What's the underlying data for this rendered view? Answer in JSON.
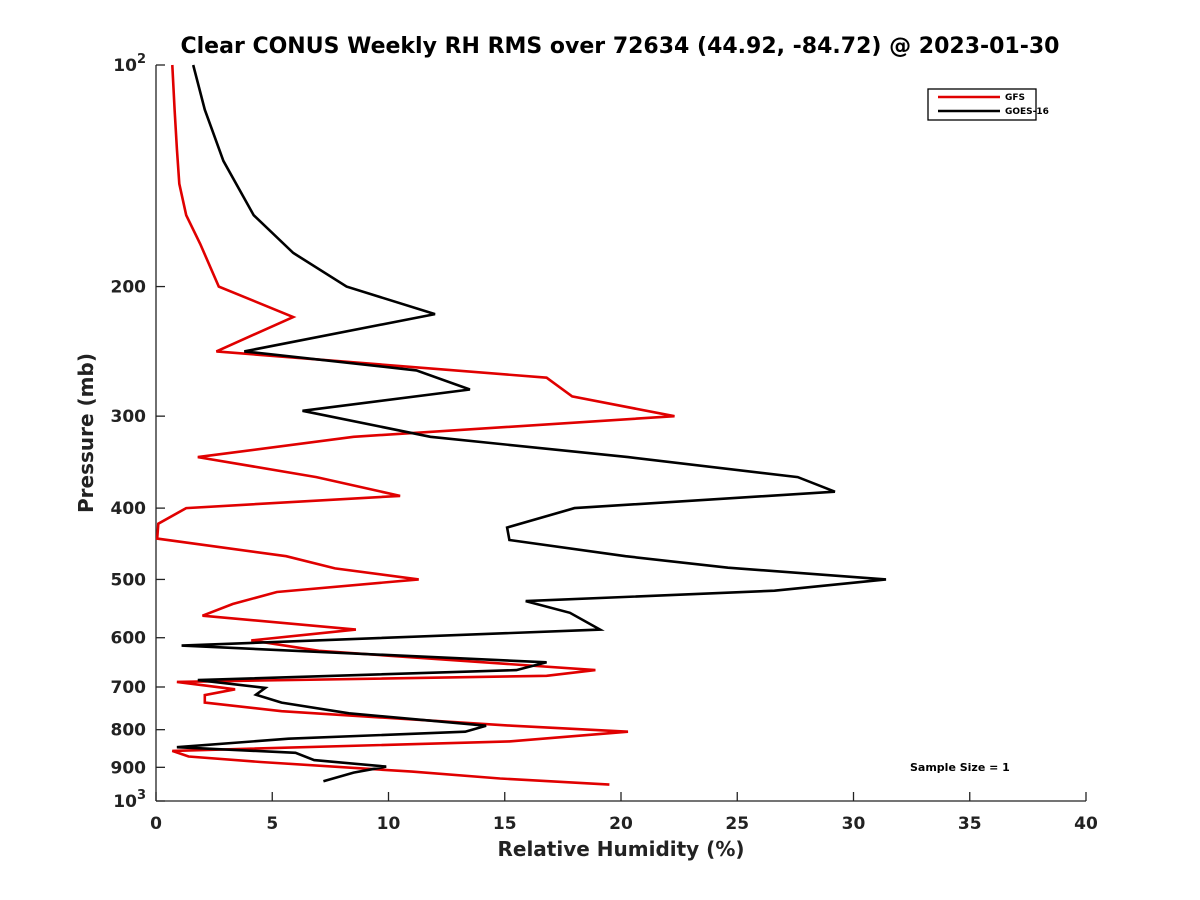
{
  "chart_data": {
    "type": "line",
    "title": "Clear CONUS Weekly RH RMS over 72634 (44.92, -84.72) @ 2023-01-30",
    "xlabel": "Relative Humidity (%)",
    "ylabel": "Pressure (mb)",
    "xlim": [
      0,
      40
    ],
    "ylim": [
      100,
      1000
    ],
    "yscale": "log",
    "yreversed": true,
    "grid": false,
    "legend_position": "top-right",
    "x_ticks": [
      "0",
      "5",
      "10",
      "15",
      "20",
      "25",
      "30",
      "35",
      "40"
    ],
    "x_tick_values": [
      0,
      5,
      10,
      15,
      20,
      25,
      30,
      35,
      40
    ],
    "y_ticks": [
      {
        "value": 100,
        "base": "10",
        "exp": "2",
        "label": "10^2"
      },
      {
        "value": 200,
        "label": "200"
      },
      {
        "value": 300,
        "label": "300"
      },
      {
        "value": 400,
        "label": "400"
      },
      {
        "value": 500,
        "label": "500"
      },
      {
        "value": 600,
        "label": "600"
      },
      {
        "value": 700,
        "label": "700"
      },
      {
        "value": 800,
        "label": "800"
      },
      {
        "value": 900,
        "label": "900"
      },
      {
        "value": 1000,
        "base": "10",
        "exp": "3",
        "label": "10^3"
      }
    ],
    "annotation": "Sample Size = 1",
    "series": [
      {
        "name": "GFS",
        "color": "#e00000",
        "points": [
          [
            0.7,
            100
          ],
          [
            0.8,
            115
          ],
          [
            0.9,
            130
          ],
          [
            1.0,
            145
          ],
          [
            1.3,
            160
          ],
          [
            1.9,
            175
          ],
          [
            2.7,
            200
          ],
          [
            5.9,
            220
          ],
          [
            2.6,
            245
          ],
          [
            16.8,
            266
          ],
          [
            17.9,
            282
          ],
          [
            22.3,
            300
          ],
          [
            8.5,
            320
          ],
          [
            1.8,
            341
          ],
          [
            6.9,
            363
          ],
          [
            10.5,
            385
          ],
          [
            1.3,
            400
          ],
          [
            0.1,
            420
          ],
          [
            0.05,
            440
          ],
          [
            5.6,
            465
          ],
          [
            7.7,
            483
          ],
          [
            11.3,
            500
          ],
          [
            5.2,
            520
          ],
          [
            3.3,
            540
          ],
          [
            2.0,
            560
          ],
          [
            8.6,
            585
          ],
          [
            4.1,
            605
          ],
          [
            7.0,
            625
          ],
          [
            18.9,
            664
          ],
          [
            16.8,
            676
          ],
          [
            0.9,
            689
          ],
          [
            3.4,
            705
          ],
          [
            2.1,
            718
          ],
          [
            2.1,
            735
          ],
          [
            5.4,
            755
          ],
          [
            15.3,
            790
          ],
          [
            20.3,
            805
          ],
          [
            15.2,
            830
          ],
          [
            0.7,
            855
          ],
          [
            1.4,
            870
          ],
          [
            4.5,
            885
          ],
          [
            11.0,
            912
          ],
          [
            14.8,
            932
          ],
          [
            19.5,
            950
          ]
        ]
      },
      {
        "name": "GOES-16",
        "color": "#000000",
        "points": [
          [
            1.6,
            100
          ],
          [
            2.1,
            115
          ],
          [
            2.9,
            135
          ],
          [
            4.2,
            160
          ],
          [
            5.9,
            180
          ],
          [
            8.2,
            200
          ],
          [
            12.0,
            218
          ],
          [
            3.8,
            245
          ],
          [
            11.2,
            260
          ],
          [
            13.5,
            276
          ],
          [
            6.3,
            295
          ],
          [
            11.8,
            320
          ],
          [
            20.3,
            341
          ],
          [
            27.6,
            363
          ],
          [
            29.2,
            380
          ],
          [
            18.0,
            400
          ],
          [
            15.1,
            425
          ],
          [
            15.2,
            442
          ],
          [
            20.2,
            465
          ],
          [
            24.6,
            482
          ],
          [
            31.4,
            500
          ],
          [
            26.6,
            518
          ],
          [
            15.9,
            535
          ],
          [
            17.8,
            555
          ],
          [
            19.1,
            585
          ],
          [
            1.1,
            615
          ],
          [
            16.8,
            648
          ],
          [
            15.5,
            664
          ],
          [
            1.8,
            685
          ],
          [
            4.7,
            702
          ],
          [
            4.3,
            717
          ],
          [
            5.4,
            735
          ],
          [
            8.3,
            760
          ],
          [
            14.2,
            790
          ],
          [
            13.3,
            805
          ],
          [
            5.7,
            823
          ],
          [
            0.9,
            845
          ],
          [
            6.0,
            860
          ],
          [
            6.8,
            880
          ],
          [
            9.9,
            898
          ],
          [
            8.5,
            915
          ],
          [
            7.2,
            940
          ]
        ]
      }
    ]
  }
}
